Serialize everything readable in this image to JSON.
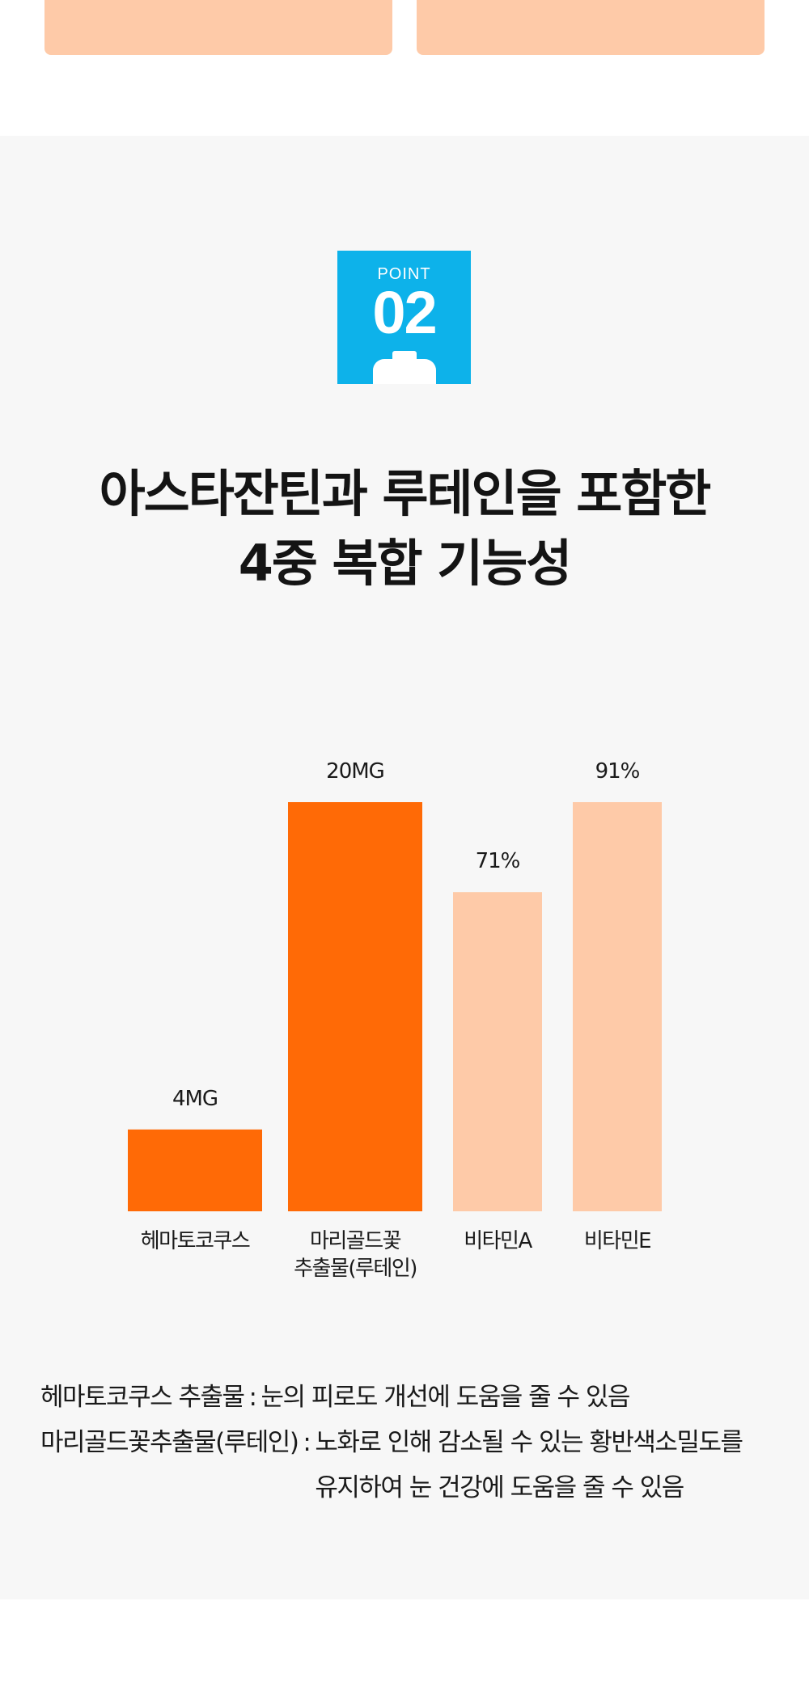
{
  "badge": {
    "label": "POINT",
    "number": "02"
  },
  "headline": {
    "line1": "아스타잔틴과 루테인을 포함한",
    "line2": "4중 복합 기능성"
  },
  "chart_data": {
    "type": "bar",
    "categories": [
      [
        "헤마토코쿠스"
      ],
      [
        "마리골드꽃",
        "추출물(루테인)"
      ],
      [
        "비타민A"
      ],
      [
        "비타민E"
      ]
    ],
    "values": [
      4,
      20,
      71,
      91
    ],
    "value_labels": [
      "4MG",
      "20MG",
      "71%",
      "91%"
    ],
    "colors": [
      "#ff6a06",
      "#ff6a06",
      "#fecaa8",
      "#fecaa8"
    ],
    "groups": [
      {
        "unit": "MG",
        "members": [
          0,
          1
        ],
        "ylim": [
          0,
          20
        ]
      },
      {
        "unit": "%",
        "members": [
          2,
          3
        ],
        "ylim": [
          0,
          91
        ]
      }
    ]
  },
  "notes": [
    {
      "term": "헤마토코쿠스 추출물",
      "separator": ":",
      "lines": [
        "눈의 피로도 개선에 도움을 줄 수 있음"
      ]
    },
    {
      "term": "마리골드꽃추출물(루테인)",
      "separator": ":",
      "lines": [
        "노화로 인해 감소될 수 있는 황반색소밀도를",
        "유지하여 눈 건강에 도움을 줄 수 있음"
      ]
    }
  ]
}
